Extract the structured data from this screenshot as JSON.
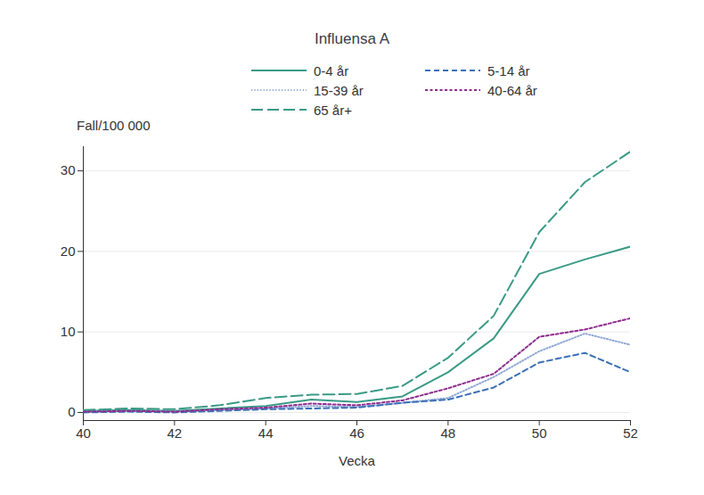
{
  "chart_data": {
    "type": "line",
    "title": "Influensa A",
    "xlabel": "Vecka",
    "ylabel": "Fall/100 000",
    "x": [
      40,
      41,
      42,
      43,
      44,
      45,
      46,
      47,
      48,
      49,
      50,
      51,
      52
    ],
    "series": [
      {
        "name": "0-4 år",
        "color": "#3a9a86",
        "line_style": "solid",
        "values": [
          0.2,
          0.3,
          0.2,
          0.5,
          0.8,
          1.6,
          1.3,
          2.0,
          5.0,
          9.2,
          17.2,
          19.0,
          20.6
        ]
      },
      {
        "name": "15-39 år",
        "color": "#90a7d6",
        "line_style": "dotted",
        "values": [
          0.1,
          0.2,
          0.1,
          0.3,
          0.5,
          0.8,
          0.7,
          1.2,
          1.8,
          4.4,
          7.6,
          9.8,
          8.4
        ]
      },
      {
        "name": "65 år+",
        "color": "#3a9a86",
        "line_style": "longdash",
        "values": [
          0.3,
          0.5,
          0.4,
          0.9,
          1.8,
          2.2,
          2.3,
          3.3,
          6.8,
          12.0,
          22.4,
          28.6,
          32.4
        ]
      },
      {
        "name": "5-14 år",
        "color": "#3b6fb6",
        "line_style": "dashed",
        "values": [
          0.0,
          0.1,
          0.0,
          0.2,
          0.4,
          0.5,
          0.6,
          1.2,
          1.6,
          3.1,
          6.2,
          7.4,
          5.0
        ]
      },
      {
        "name": "40-64 år",
        "color": "#8e2d8e",
        "line_style": "shortdash",
        "values": [
          0.1,
          0.2,
          0.1,
          0.4,
          0.6,
          1.1,
          0.9,
          1.5,
          3.0,
          4.8,
          9.4,
          10.3,
          11.7
        ]
      }
    ],
    "xlim": [
      40,
      52
    ],
    "xticks": [
      40,
      42,
      44,
      46,
      48,
      50,
      52
    ],
    "ylim": [
      -1,
      33
    ],
    "yticks": [
      0,
      10,
      20,
      30
    ],
    "grid": true
  }
}
